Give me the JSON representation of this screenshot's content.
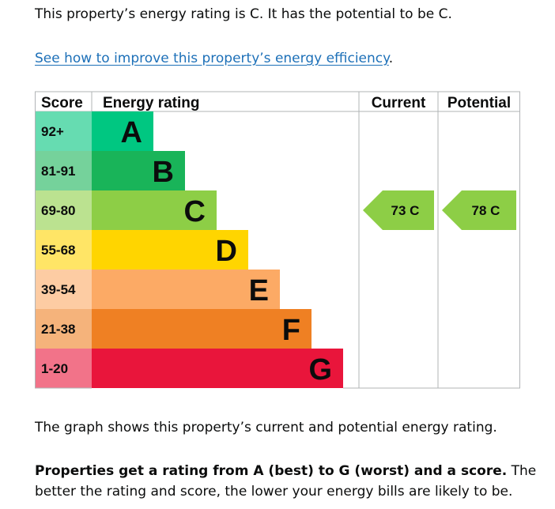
{
  "intro": "This property’s energy rating is C. It has the potential to be C.",
  "improve_link": {
    "text": "See how to improve this property’s energy efficiency",
    "trailing": "."
  },
  "chart_data": {
    "type": "bar",
    "headers": {
      "score": "Score",
      "rating": "Energy rating",
      "current": "Current",
      "potential": "Potential"
    },
    "bands": [
      {
        "letter": "A",
        "range": "92+",
        "color": "#00c781",
        "score_bg": "#66dcb1"
      },
      {
        "letter": "B",
        "range": "81-91",
        "color": "#19b459",
        "score_bg": "#75d29b"
      },
      {
        "letter": "C",
        "range": "69-80",
        "color": "#8dce46",
        "score_bg": "#bbe290"
      },
      {
        "letter": "D",
        "range": "55-68",
        "color": "#ffd500",
        "score_bg": "#ffe566"
      },
      {
        "letter": "E",
        "range": "39-54",
        "color": "#fcaa65",
        "score_bg": "#fdcca3"
      },
      {
        "letter": "F",
        "range": "21-38",
        "color": "#ef8023",
        "score_bg": "#f5b37b"
      },
      {
        "letter": "G",
        "range": "1-20",
        "color": "#e9153b",
        "score_bg": "#f27389"
      }
    ],
    "current": {
      "score": 73,
      "band": "C",
      "label": "73  C"
    },
    "potential": {
      "score": 78,
      "band": "C",
      "label": "78  C"
    }
  },
  "graph_caption": "The graph shows this property’s current and potential energy rating.",
  "summary": {
    "bold": "Properties get a rating from A (best) to G (worst) and a score.",
    "rest": " The better the rating and score, the lower your energy bills are likely to be."
  }
}
